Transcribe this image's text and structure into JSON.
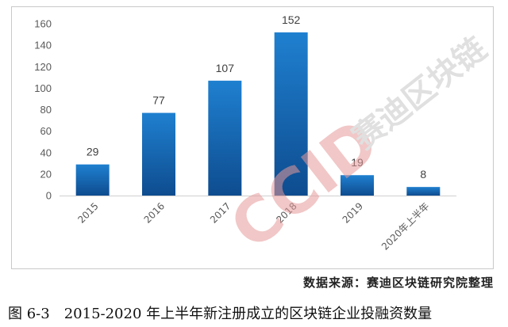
{
  "chart_data": {
    "type": "bar",
    "categories": [
      "2015",
      "2016",
      "2017",
      "2018",
      "2019",
      "2020年上半年"
    ],
    "values": [
      29,
      77,
      107,
      152,
      19,
      8
    ],
    "ylim": [
      0,
      160
    ],
    "yticks": [
      0,
      20,
      40,
      60,
      80,
      100,
      120,
      140,
      160
    ],
    "grid": false,
    "colors": {
      "bar_top": "#1f80d0",
      "bar_bottom": "#0e4c8f"
    }
  },
  "source_note": "数据来源：赛迪区块链研究院整理",
  "caption": {
    "number": "图 6-3",
    "text": "2015-2020 年上半年新注册成立的区块链企业投融资数量"
  },
  "watermark": {
    "logo_text": "CCID",
    "cn_text": "赛迪区块链"
  }
}
